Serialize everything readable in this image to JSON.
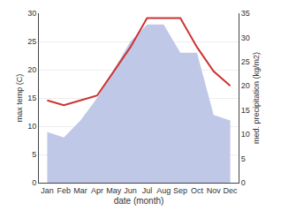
{
  "chart_data": {
    "type": "line",
    "xlabel": "date (month)",
    "ylabel": "max temp (C)",
    "y2label": "med. precipitation (kg/m2)",
    "categories": [
      "Jan",
      "Feb",
      "Mar",
      "Apr",
      "May",
      "Jun",
      "Jul",
      "Aug",
      "Sep",
      "Oct",
      "Nov",
      "Dec"
    ],
    "series": [
      {
        "type": "area",
        "color": "#c0c8e8",
        "values": [
          9,
          8,
          11,
          15,
          20,
          25,
          28,
          28,
          23,
          23,
          12,
          11
        ]
      },
      {
        "type": "line",
        "color": "#cc3333",
        "axis": "y2",
        "values": [
          17,
          16,
          17,
          18,
          23,
          28,
          34,
          34,
          34,
          28,
          23,
          20
        ]
      }
    ],
    "ylim": [
      0,
      30
    ],
    "yticks": [
      0,
      5,
      10,
      15,
      20,
      25,
      30
    ],
    "y2lim": [
      0,
      35
    ],
    "y2ticks": [
      0,
      5,
      10,
      15,
      20,
      25,
      30,
      35
    ],
    "grid": true
  }
}
